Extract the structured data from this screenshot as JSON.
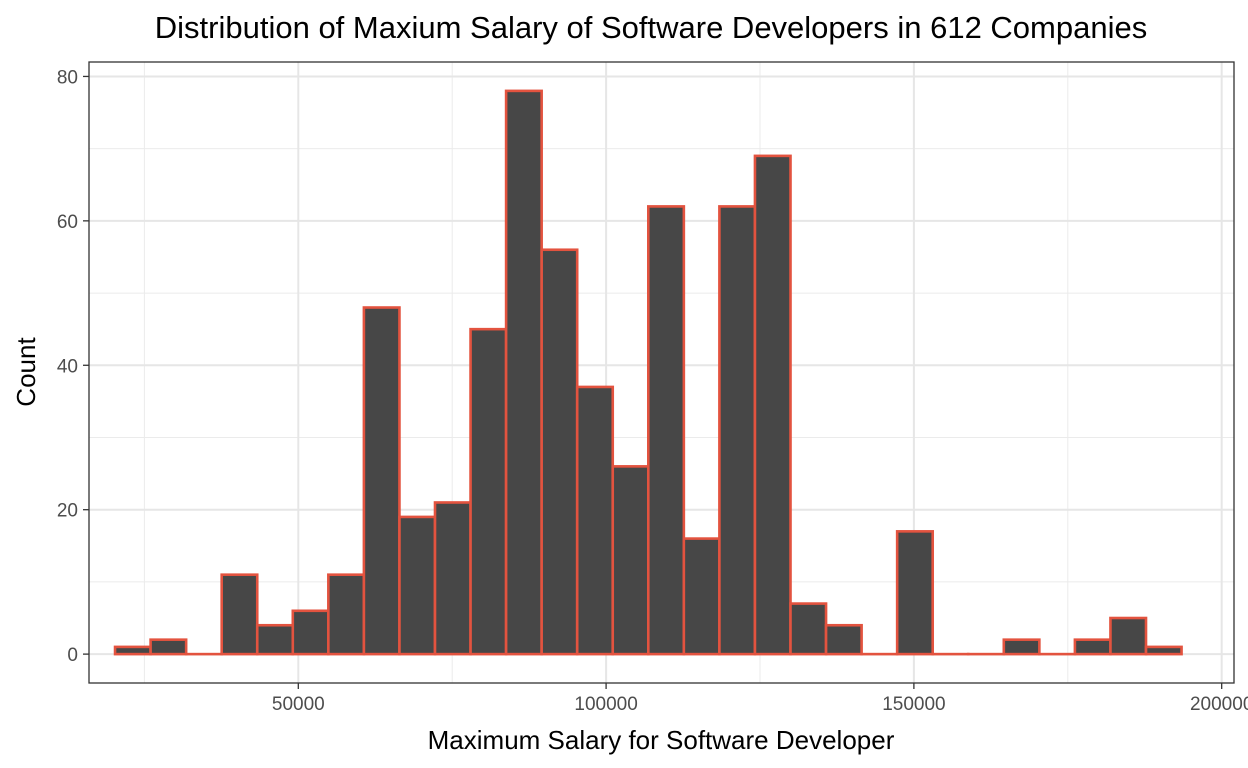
{
  "chart_data": {
    "type": "bar",
    "title": "Distribution of Maxium Salary of Software Developers in 612 Companies",
    "xlabel": "Maximum Salary for Software Developer",
    "ylabel": "Count",
    "xlim": [
      16000,
      202000
    ],
    "ylim": [
      -4,
      82
    ],
    "x_ticks": [
      50000,
      100000,
      150000,
      200000
    ],
    "x_tick_labels": [
      "50000",
      "100000",
      "150000",
      "200000"
    ],
    "y_ticks": [
      0,
      20,
      40,
      60,
      80
    ],
    "y_tick_labels": [
      "0",
      "20",
      "40",
      "60",
      "80"
    ],
    "grid": true,
    "fill_color": "#474747",
    "outline_color": "#e3533f",
    "bins": [
      {
        "start": 20231,
        "end": 26006,
        "count": 1
      },
      {
        "start": 26006,
        "end": 31781,
        "count": 2
      },
      {
        "start": 31781,
        "end": 37556,
        "count": 0
      },
      {
        "start": 37556,
        "end": 43331,
        "count": 11
      },
      {
        "start": 43331,
        "end": 49106,
        "count": 4
      },
      {
        "start": 49106,
        "end": 54881,
        "count": 6
      },
      {
        "start": 54881,
        "end": 60656,
        "count": 11
      },
      {
        "start": 60656,
        "end": 66431,
        "count": 48
      },
      {
        "start": 66431,
        "end": 72206,
        "count": 19
      },
      {
        "start": 72206,
        "end": 77981,
        "count": 21
      },
      {
        "start": 77981,
        "end": 83756,
        "count": 45
      },
      {
        "start": 83756,
        "end": 89531,
        "count": 78
      },
      {
        "start": 89531,
        "end": 95306,
        "count": 56
      },
      {
        "start": 95306,
        "end": 101081,
        "count": 37
      },
      {
        "start": 101081,
        "end": 106856,
        "count": 26
      },
      {
        "start": 106856,
        "end": 112631,
        "count": 62
      },
      {
        "start": 112631,
        "end": 118406,
        "count": 16
      },
      {
        "start": 118406,
        "end": 124181,
        "count": 62
      },
      {
        "start": 124181,
        "end": 129956,
        "count": 69
      },
      {
        "start": 129956,
        "end": 135731,
        "count": 7
      },
      {
        "start": 135731,
        "end": 141506,
        "count": 4
      },
      {
        "start": 141506,
        "end": 147281,
        "count": 0
      },
      {
        "start": 147281,
        "end": 153056,
        "count": 17
      },
      {
        "start": 153056,
        "end": 158831,
        "count": 0
      },
      {
        "start": 158831,
        "end": 164606,
        "count": 0
      },
      {
        "start": 164606,
        "end": 170381,
        "count": 2
      },
      {
        "start": 170381,
        "end": 176156,
        "count": 0
      },
      {
        "start": 176156,
        "end": 181931,
        "count": 2
      },
      {
        "start": 181931,
        "end": 187706,
        "count": 5
      },
      {
        "start": 187706,
        "end": 193481,
        "count": 1
      }
    ]
  }
}
